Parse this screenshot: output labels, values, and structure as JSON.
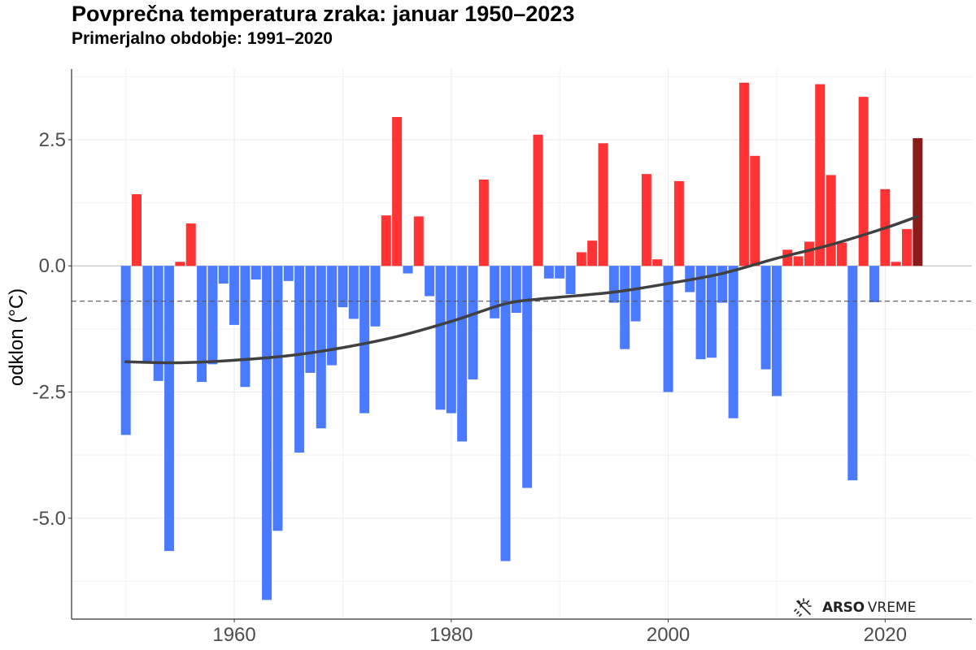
{
  "chart_data": {
    "type": "bar",
    "title": "Povprečna temperatura zraka: januar 1950–2023",
    "subtitle": "Primerjalno obdobje: 1991–2020",
    "xlabel": "",
    "ylabel": "odklon (°C)",
    "xlim": [
      1945,
      2028
    ],
    "ylim": [
      -7.0,
      3.9
    ],
    "x_ticks": [
      1960,
      1980,
      2000,
      2020
    ],
    "x_tick_labels": [
      "1960",
      "1980",
      "2000",
      "2020"
    ],
    "y_ticks": [
      2.5,
      0.0,
      -2.5,
      -5.0
    ],
    "y_tick_labels": [
      "2.5",
      "0.0",
      "-2.5",
      "-5.0"
    ],
    "grid": true,
    "reference_line": -0.7,
    "colors": {
      "positive": "#ff3333",
      "negative": "#4a7aff",
      "latest": "#8b1a1a",
      "trend": "#404040",
      "reference": "#555555"
    },
    "x": [
      1950,
      1951,
      1952,
      1953,
      1954,
      1955,
      1956,
      1957,
      1958,
      1959,
      1960,
      1961,
      1962,
      1963,
      1964,
      1965,
      1966,
      1967,
      1968,
      1969,
      1970,
      1971,
      1972,
      1973,
      1974,
      1975,
      1976,
      1977,
      1978,
      1979,
      1980,
      1981,
      1982,
      1983,
      1984,
      1985,
      1986,
      1987,
      1988,
      1989,
      1990,
      1991,
      1992,
      1993,
      1994,
      1995,
      1996,
      1997,
      1998,
      1999,
      2000,
      2001,
      2002,
      2003,
      2004,
      2005,
      2006,
      2007,
      2008,
      2009,
      2010,
      2011,
      2012,
      2013,
      2014,
      2015,
      2016,
      2017,
      2018,
      2019,
      2020,
      2021,
      2022,
      2023
    ],
    "values": [
      -3.35,
      1.42,
      -1.9,
      -2.28,
      -5.65,
      0.08,
      0.84,
      -2.3,
      -1.95,
      -0.35,
      -1.17,
      -2.4,
      -0.27,
      -6.62,
      -5.25,
      -0.3,
      -3.7,
      -2.12,
      -3.22,
      -1.97,
      -0.82,
      -1.05,
      -2.92,
      -1.2,
      1.0,
      2.95,
      -0.15,
      0.98,
      -0.6,
      -2.85,
      -2.92,
      -3.48,
      -2.25,
      1.71,
      -1.04,
      -5.85,
      -0.93,
      -4.4,
      2.6,
      -0.25,
      -0.25,
      -0.56,
      0.27,
      0.5,
      2.43,
      -0.73,
      -1.65,
      -1.1,
      1.82,
      0.13,
      -2.5,
      1.68,
      -0.52,
      -1.85,
      -1.82,
      -0.73,
      -3.02,
      3.63,
      2.18,
      -2.05,
      -2.58,
      0.32,
      0.19,
      0.48,
      3.6,
      1.8,
      0.46,
      -4.25,
      3.35,
      -0.72,
      1.52,
      0.08,
      0.73,
      2.53
    ],
    "trend": {
      "x": [
        1950,
        1955,
        1960,
        1965,
        1970,
        1975,
        1980,
        1985,
        1988,
        1990,
        1995,
        2000,
        2005,
        2010,
        2015,
        2020,
        2023
      ],
      "y": [
        -1.9,
        -1.92,
        -1.87,
        -1.78,
        -1.62,
        -1.4,
        -1.1,
        -0.75,
        -0.66,
        -0.62,
        -0.52,
        -0.35,
        -0.15,
        0.15,
        0.42,
        0.75,
        0.98
      ]
    }
  },
  "logo": {
    "brand": "ARSO",
    "product": "VREME",
    "icon": "sun-rain-icon"
  }
}
